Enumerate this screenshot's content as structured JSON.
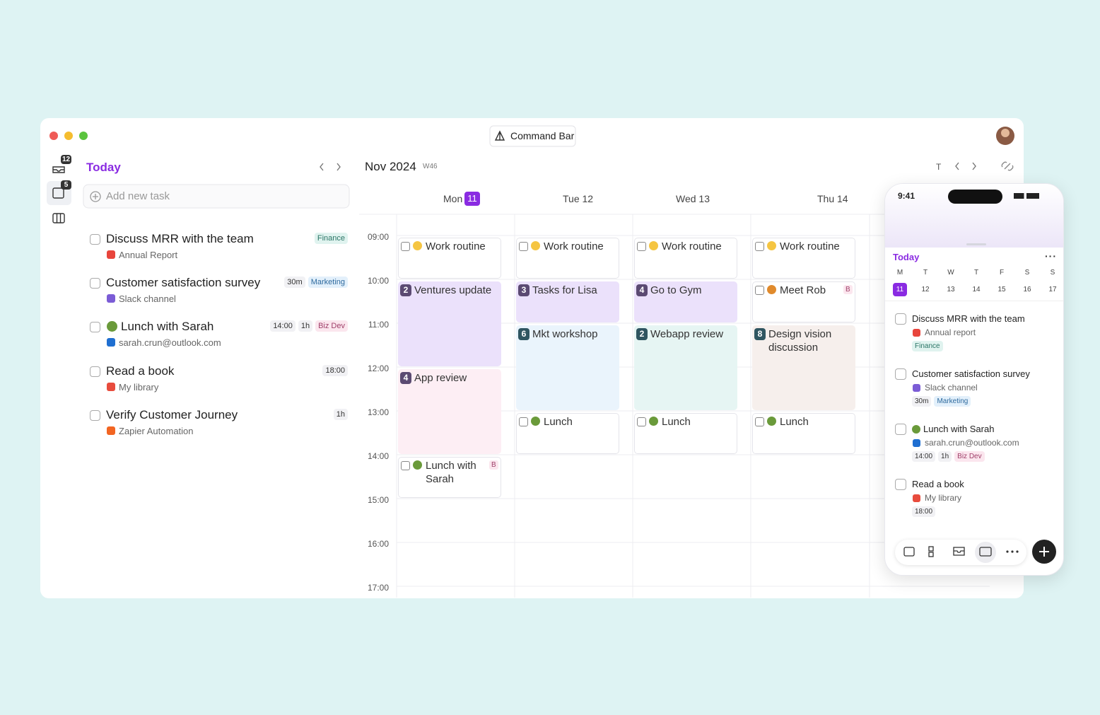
{
  "window": {
    "command_bar": "Command Bar"
  },
  "sidebar": {
    "badges": [
      "12",
      "5"
    ]
  },
  "tasks_panel": {
    "title": "Today",
    "add_placeholder": "Add new task",
    "tasks": [
      {
        "title": "Discuss MRR with the team",
        "source": "Annual Report",
        "tags": [
          {
            "text": "Finance",
            "color": "#2b7566",
            "bg": "#e0f3ef"
          }
        ]
      },
      {
        "title": "Customer satisfaction survey",
        "source": "Slack channel",
        "tags": [
          {
            "text": "30m",
            "color": "#333333",
            "bg": "#f1f1f4"
          },
          {
            "text": "Marketing",
            "color": "#2e6a9e",
            "bg": "#e3f0fb"
          }
        ]
      },
      {
        "title": "Lunch with Sarah",
        "icon_color": "#6a9a3a",
        "source": "sarah.crun@outlook.com",
        "tags": [
          {
            "text": "14:00",
            "color": "#333333",
            "bg": "#f1f1f4"
          },
          {
            "text": "1h",
            "color": "#333333",
            "bg": "#f1f1f4"
          },
          {
            "text": "Biz Dev",
            "color": "#a0406a",
            "bg": "#fbe6ee"
          }
        ]
      },
      {
        "title": "Read a book",
        "source": "My library",
        "tags": [
          {
            "text": "18:00",
            "color": "#333333",
            "bg": "#f1f1f4"
          }
        ]
      },
      {
        "title": "Verify Customer Journey",
        "source": "Zapier Automation",
        "tags": [
          {
            "text": "1h",
            "color": "#333333",
            "bg": "#f1f1f4"
          }
        ]
      }
    ]
  },
  "calendar": {
    "month": "Nov 2024",
    "week": "W46",
    "today_button": "T",
    "hours": [
      "09:00",
      "10:00",
      "11:00",
      "12:00",
      "13:00",
      "14:00",
      "15:00",
      "16:00",
      "17:00"
    ],
    "days": [
      {
        "label": "Mon",
        "date": "11",
        "events": [
          {
            "title": "Work routine",
            "check": true,
            "icon_color": "#f5c542",
            "bg": "#ffffff"
          },
          {
            "title": "Ventures update",
            "badge": "2",
            "badge_color": "#5b4a72",
            "bg": "#ebe1fb"
          },
          {
            "title": "App review",
            "badge": "4",
            "badge_color": "#5b4a72",
            "bg": "#fdeef4"
          },
          {
            "title": "Lunch with Sarah",
            "check": true,
            "icon_color": "#6a9a3a",
            "tag": "B",
            "bg": "#ffffff"
          }
        ]
      },
      {
        "label": "Tue 12",
        "events": [
          {
            "title": "Work routine",
            "check": true,
            "icon_color": "#f5c542",
            "bg": "#ffffff"
          },
          {
            "title": "Tasks for Lisa",
            "badge": "3",
            "badge_color": "#5b4a72",
            "bg": "#ebe1fb"
          },
          {
            "title": "Mkt workshop",
            "badge": "6",
            "badge_color": "#2f5560",
            "bg": "#eaf4fc"
          },
          {
            "title": "Lunch",
            "check": true,
            "icon_color": "#6a9a3a",
            "bg": "#ffffff"
          }
        ]
      },
      {
        "label": "Wed 13",
        "events": [
          {
            "title": "Work routine",
            "check": true,
            "icon_color": "#f5c542",
            "bg": "#ffffff"
          },
          {
            "title": "Go to Gym",
            "badge": "4",
            "badge_color": "#5b4a72",
            "bg": "#ebe1fb"
          },
          {
            "title": "Webapp review",
            "badge": "2",
            "badge_color": "#2f5560",
            "bg": "#e6f5f3"
          },
          {
            "title": "Lunch",
            "check": true,
            "icon_color": "#6a9a3a",
            "bg": "#ffffff"
          }
        ]
      },
      {
        "label": "Thu 14",
        "events": [
          {
            "title": "Work routine",
            "check": true,
            "icon_color": "#f5c542",
            "bg": "#ffffff"
          },
          {
            "title": "Meet Rob",
            "check": true,
            "icon_color": "#e08a2c",
            "tag": "B",
            "bg": "#ffffff"
          },
          {
            "title": "Design vision discussion",
            "badge": "8",
            "badge_color": "#2f5560",
            "bg": "#f6efec"
          },
          {
            "title": "Lunch",
            "check": true,
            "icon_color": "#6a9a3a",
            "bg": "#ffffff"
          }
        ]
      }
    ]
  },
  "phone": {
    "time": "9:41",
    "title": "Today",
    "weekdays": [
      "M",
      "T",
      "W",
      "T",
      "F",
      "S",
      "S"
    ],
    "dates": [
      "11",
      "12",
      "13",
      "14",
      "15",
      "16",
      "17"
    ],
    "tasks": [
      {
        "title": "Discuss MRR with the team",
        "source": "Annual report",
        "tags": [
          {
            "text": "Finance",
            "color": "#2b7566",
            "bg": "#e0f3ef"
          }
        ]
      },
      {
        "title": "Customer satisfaction survey",
        "source": "Slack channel",
        "tags": [
          {
            "text": "30m",
            "color": "#333333",
            "bg": "#f1f1f4"
          },
          {
            "text": "Marketing",
            "color": "#2e6a9e",
            "bg": "#e3f0fb"
          }
        ]
      },
      {
        "title": "Lunch with Sarah",
        "icon_color": "#6a9a3a",
        "source": "sarah.crun@outlook.com",
        "tags": [
          {
            "text": "14:00",
            "color": "#333333",
            "bg": "#f1f1f4"
          },
          {
            "text": "1h",
            "color": "#333333",
            "bg": "#f1f1f4"
          },
          {
            "text": "Biz Dev",
            "color": "#a0406a",
            "bg": "#fbe6ee"
          }
        ]
      },
      {
        "title": "Read a book",
        "source": "My library",
        "tags": [
          {
            "text": "18:00",
            "color": "#333333",
            "bg": "#f1f1f4"
          }
        ]
      }
    ]
  }
}
